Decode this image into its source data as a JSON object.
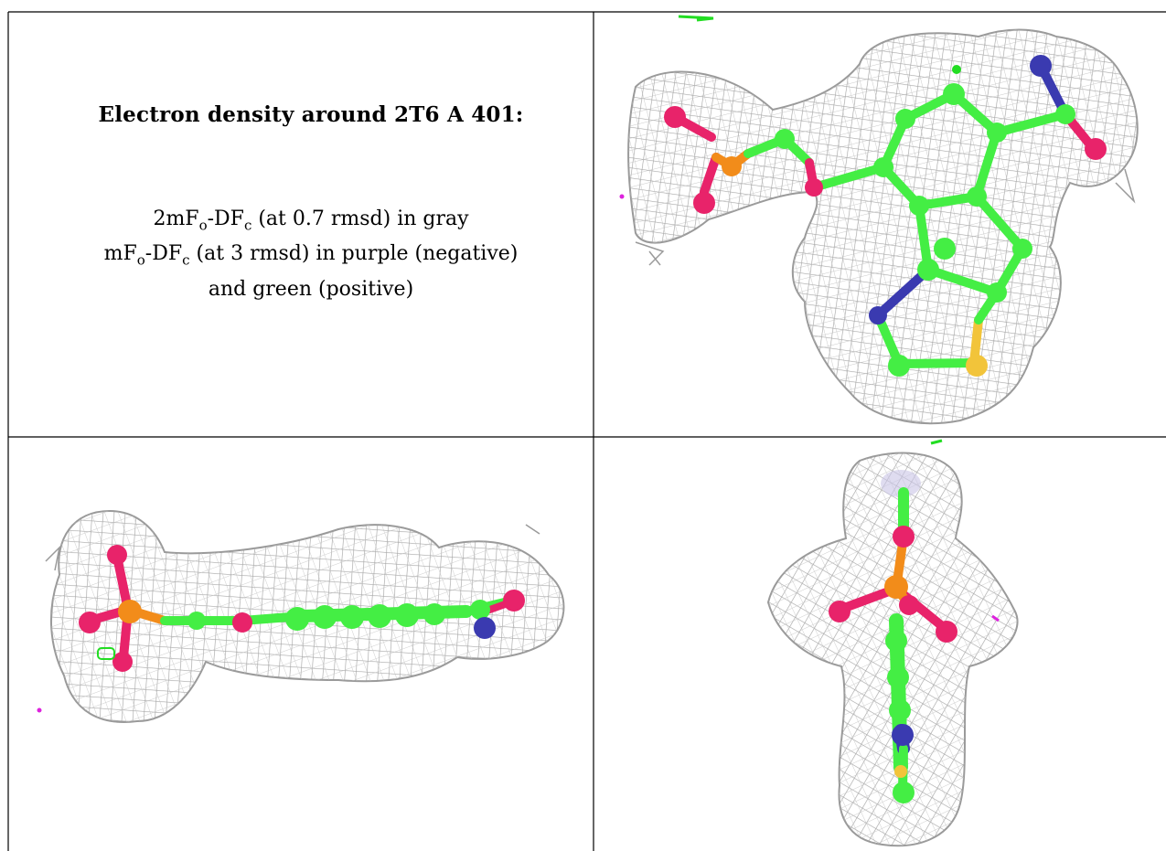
{
  "title": "Electron density around 2T6 A 401:",
  "legend": {
    "line1_prefix": "2mF",
    "line1_sub1": "o",
    "line1_mid": "-DF",
    "line1_sub2": "c",
    "line1_suffix": " (at 0.7 rmsd) in gray",
    "line2_prefix": "mF",
    "line2_sub1": "o",
    "line2_mid": "-DF",
    "line2_sub2": "c",
    "line2_suffix": " (at 3 rmsd) in purple (negative)",
    "line3": "and green (positive)"
  },
  "colors": {
    "mesh": "#a6a6a6",
    "carbon": "#44ee44",
    "oxygen": "#e8236a",
    "phosphorus": "#f28c1a",
    "nitrogen": "#3a3ab0",
    "sulfur": "#f2c43a",
    "positive": "#22dd22",
    "negative": "#dd22dd",
    "grid_line": "#000000"
  },
  "views": [
    {
      "name": "view-top-right",
      "orientation": "face-on"
    },
    {
      "name": "view-bottom-left",
      "orientation": "edge-on"
    },
    {
      "name": "view-bottom-right",
      "orientation": "end-on"
    }
  ]
}
